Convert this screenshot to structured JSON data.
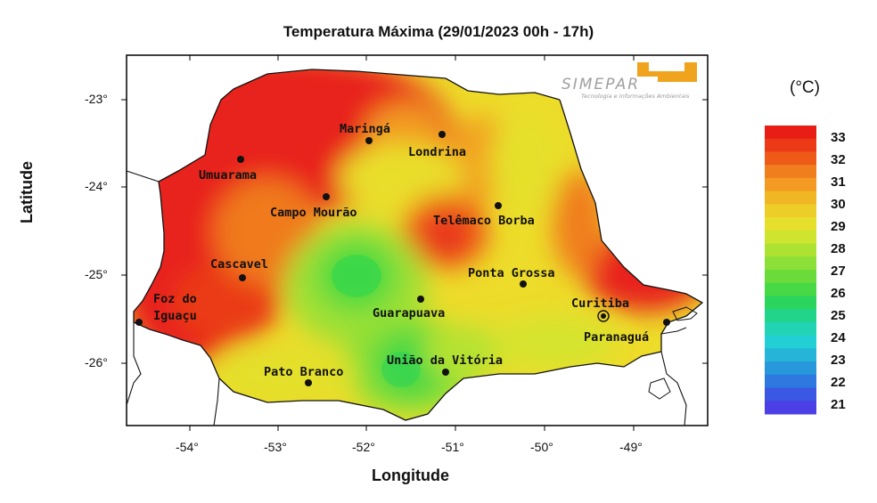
{
  "title": "Temperatura Máxima (29/01/2023 00h - 17h)",
  "xlabel": "Longitude",
  "ylabel": "Latitude",
  "x_ticks": [
    "-54°",
    "-53°",
    "-52°",
    "-51°",
    "-50°",
    "-49°"
  ],
  "y_ticks": [
    "-23°",
    "-24°",
    "-25°",
    "-26°"
  ],
  "logo": {
    "name": "SIMEPAR",
    "tagline": "Tecnologia e Informações Ambientais"
  },
  "colorbar": {
    "unit": "(°C)",
    "labels": [
      "33",
      "32",
      "31",
      "30",
      "29",
      "28",
      "27",
      "26",
      "25",
      "24",
      "23",
      "22",
      "21"
    ],
    "colors": [
      "#e81d16",
      "#ec3a17",
      "#ee5b19",
      "#f07e1d",
      "#f29a22",
      "#f0b624",
      "#edcd27",
      "#e6e02c",
      "#cfe42f",
      "#aee232",
      "#8cdf36",
      "#6bdb3c",
      "#47d845",
      "#2bd45c",
      "#21d48a",
      "#22d3b4",
      "#22cfd4",
      "#24b5d8",
      "#2898dc",
      "#2d79e0",
      "#3a58e4",
      "#4d3fe6"
    ]
  },
  "cities": [
    {
      "name": "Maringá"
    },
    {
      "name": "Londrina"
    },
    {
      "name": "Umuarama"
    },
    {
      "name": "Campo Mourão"
    },
    {
      "name": "Telêmaco Borba"
    },
    {
      "name": "Cascavel"
    },
    {
      "name": "Ponta Grossa"
    },
    {
      "name": "Foz do"
    },
    {
      "name": "Iguaçu"
    },
    {
      "name": "Guarapuava"
    },
    {
      "name": "Curitiba"
    },
    {
      "name": "Paranaguá"
    },
    {
      "name": "União da Vitória"
    },
    {
      "name": "Pato Branco"
    }
  ],
  "colors": {
    "hot": "#e8261a",
    "warm": "#f4a020",
    "mild": "#e8e030",
    "cool": "#3ad84a",
    "cold": "#4d3fe6"
  }
}
